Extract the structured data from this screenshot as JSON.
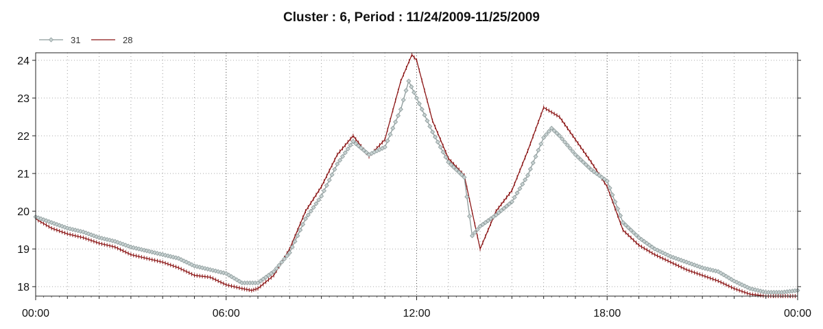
{
  "chart_data": {
    "type": "line",
    "title": "Cluster : 6, Period : 11/24/2009-11/25/2009",
    "xlabel": "",
    "ylabel": "",
    "x_unit": "hours",
    "xlim": [
      0,
      24
    ],
    "ylim": [
      17.75,
      24.2
    ],
    "x_tick_labels": [
      "00:00",
      "06:00",
      "12:00",
      "18:00",
      "00:00"
    ],
    "y_tick_labels": [
      "18",
      "19",
      "20",
      "21",
      "22",
      "23",
      "24"
    ],
    "grid": true,
    "legend_position": "top-left",
    "series": [
      {
        "name": "31",
        "color": "#8c9a9a",
        "marker": "diamond",
        "points": [
          [
            0,
            19.85
          ],
          [
            0.5,
            19.7
          ],
          [
            1,
            19.55
          ],
          [
            1.5,
            19.45
          ],
          [
            2,
            19.3
          ],
          [
            2.5,
            19.2
          ],
          [
            3,
            19.05
          ],
          [
            3.5,
            18.95
          ],
          [
            4,
            18.85
          ],
          [
            4.5,
            18.75
          ],
          [
            5,
            18.55
          ],
          [
            5.5,
            18.45
          ],
          [
            6,
            18.35
          ],
          [
            6.5,
            18.1
          ],
          [
            7,
            18.1
          ],
          [
            7.5,
            18.4
          ],
          [
            8,
            18.9
          ],
          [
            8.5,
            19.8
          ],
          [
            9,
            20.4
          ],
          [
            9.5,
            21.25
          ],
          [
            10,
            21.85
          ],
          [
            10.5,
            21.5
          ],
          [
            11,
            21.7
          ],
          [
            11.5,
            22.7
          ],
          [
            11.75,
            23.45
          ],
          [
            12,
            23.0
          ],
          [
            12.5,
            22.1
          ],
          [
            13,
            21.3
          ],
          [
            13.5,
            20.9
          ],
          [
            13.75,
            19.35
          ],
          [
            14,
            19.6
          ],
          [
            14.5,
            19.9
          ],
          [
            15,
            20.25
          ],
          [
            15.5,
            20.95
          ],
          [
            16,
            21.95
          ],
          [
            16.25,
            22.2
          ],
          [
            16.5,
            22.0
          ],
          [
            17,
            21.5
          ],
          [
            17.5,
            21.1
          ],
          [
            18,
            20.8
          ],
          [
            18.5,
            19.7
          ],
          [
            19,
            19.3
          ],
          [
            19.5,
            19.0
          ],
          [
            20,
            18.8
          ],
          [
            20.5,
            18.65
          ],
          [
            21,
            18.5
          ],
          [
            21.5,
            18.4
          ],
          [
            22,
            18.15
          ],
          [
            22.5,
            17.95
          ],
          [
            23,
            17.85
          ],
          [
            23.5,
            17.85
          ],
          [
            24,
            17.9
          ]
        ]
      },
      {
        "name": "28",
        "color": "#8b1515",
        "marker": "tick",
        "points": [
          [
            0,
            19.8
          ],
          [
            0.5,
            19.55
          ],
          [
            1,
            19.4
          ],
          [
            1.5,
            19.3
          ],
          [
            2,
            19.15
          ],
          [
            2.5,
            19.05
          ],
          [
            3,
            18.85
          ],
          [
            3.5,
            18.75
          ],
          [
            4,
            18.65
          ],
          [
            4.5,
            18.5
          ],
          [
            5,
            18.3
          ],
          [
            5.5,
            18.25
          ],
          [
            6,
            18.05
          ],
          [
            6.5,
            17.95
          ],
          [
            6.8,
            17.9
          ],
          [
            7,
            17.95
          ],
          [
            7.5,
            18.3
          ],
          [
            8,
            19.0
          ],
          [
            8.5,
            20.0
          ],
          [
            9,
            20.65
          ],
          [
            9.5,
            21.5
          ],
          [
            10,
            22.0
          ],
          [
            10.5,
            21.45
          ],
          [
            11,
            21.9
          ],
          [
            11.5,
            23.45
          ],
          [
            11.85,
            24.15
          ],
          [
            12,
            24.0
          ],
          [
            12.5,
            22.4
          ],
          [
            13,
            21.4
          ],
          [
            13.5,
            20.95
          ],
          [
            14,
            19.0
          ],
          [
            14.5,
            20.0
          ],
          [
            15,
            20.55
          ],
          [
            15.5,
            21.6
          ],
          [
            16,
            22.75
          ],
          [
            16.5,
            22.5
          ],
          [
            17,
            21.9
          ],
          [
            17.5,
            21.3
          ],
          [
            18,
            20.65
          ],
          [
            18.5,
            19.5
          ],
          [
            19,
            19.1
          ],
          [
            19.5,
            18.85
          ],
          [
            20,
            18.65
          ],
          [
            20.5,
            18.45
          ],
          [
            21,
            18.3
          ],
          [
            21.5,
            18.15
          ],
          [
            22,
            17.95
          ],
          [
            22.5,
            17.8
          ],
          [
            23,
            17.75
          ],
          [
            24,
            17.75
          ]
        ]
      }
    ]
  }
}
